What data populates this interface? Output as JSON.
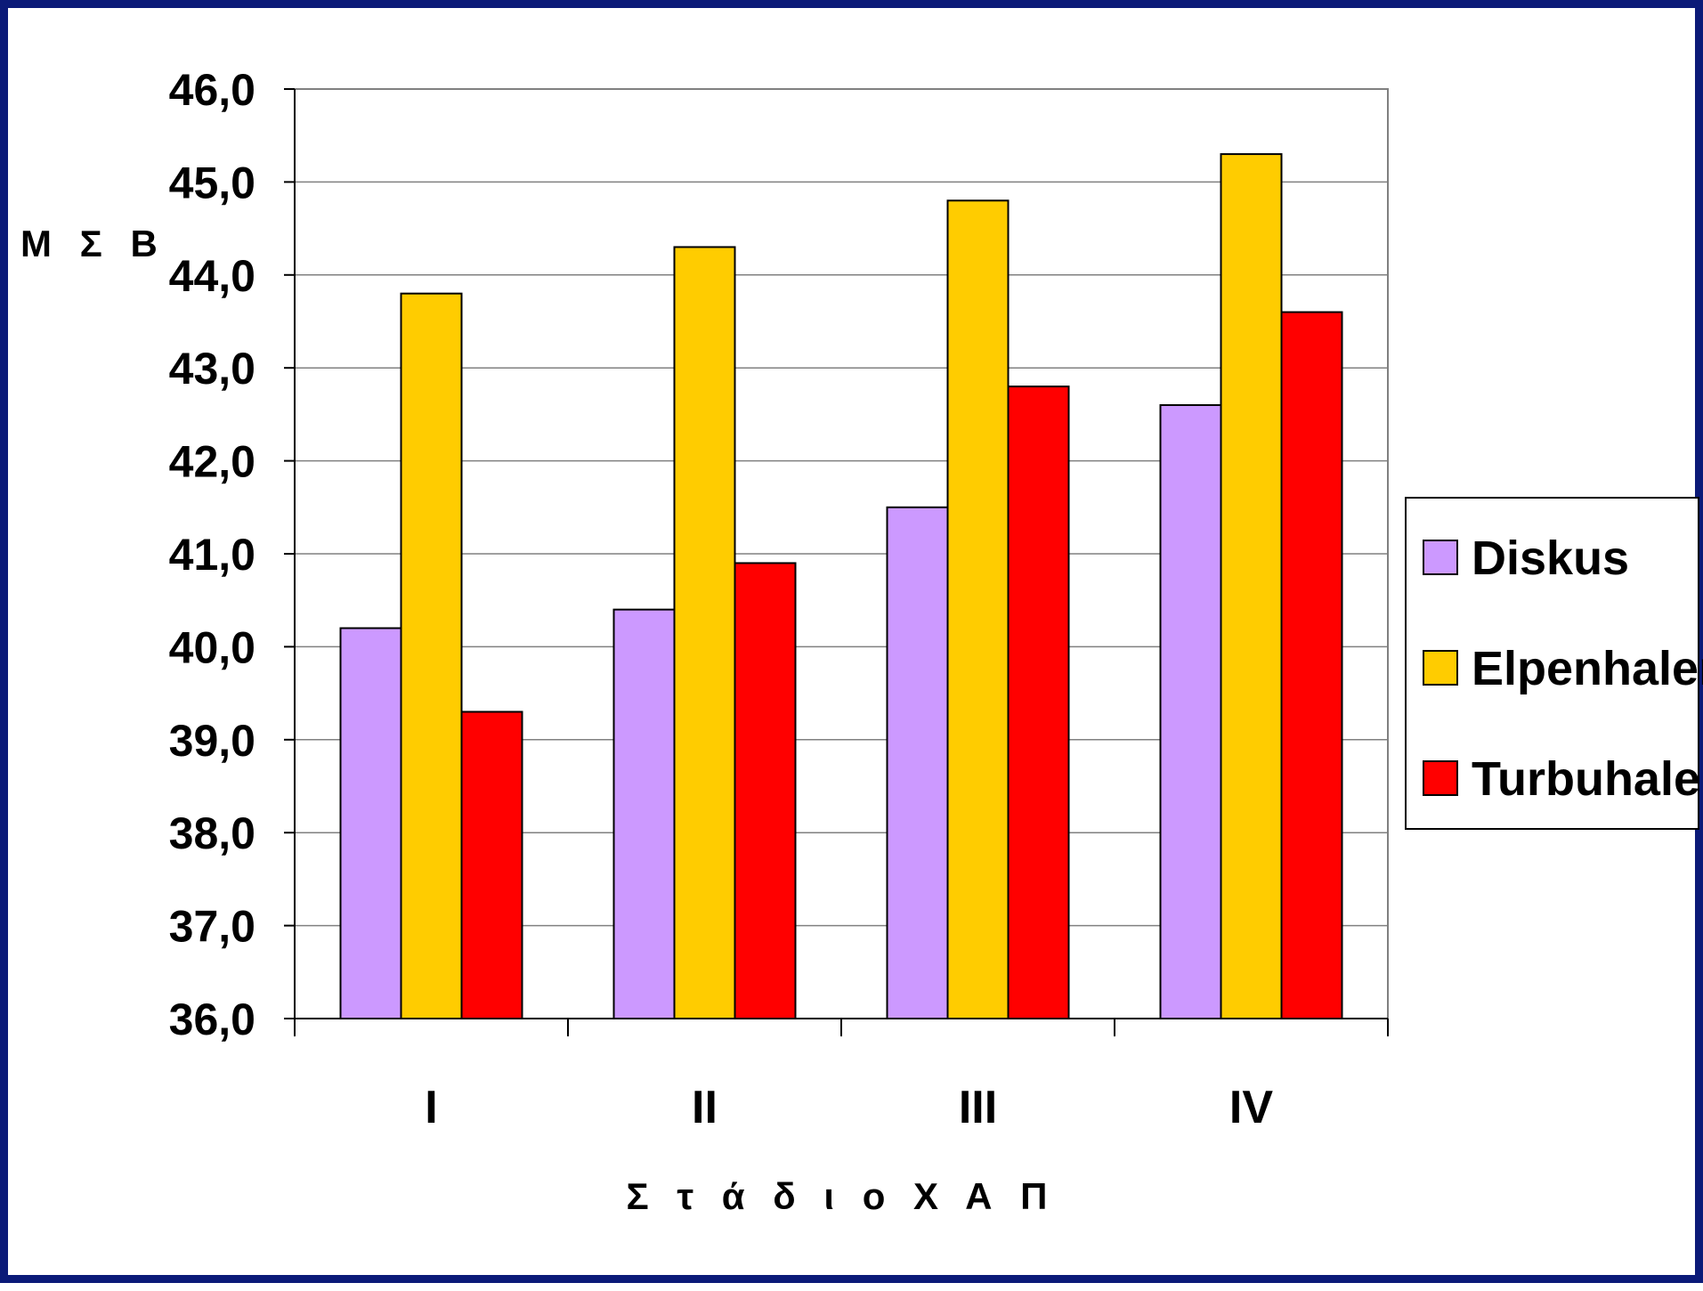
{
  "chart_data": {
    "type": "bar",
    "title": "",
    "xlabel": "Σ τ ά δ ι ο   Χ Α Π",
    "ylabel": "Μ Σ Β",
    "ylim": [
      36,
      46
    ],
    "yticks": [
      "36,0",
      "37,0",
      "38,0",
      "39,0",
      "40,0",
      "41,0",
      "42,0",
      "43,0",
      "44,0",
      "45,0",
      "46,0"
    ],
    "categories": [
      "I",
      "II",
      "III",
      "IV"
    ],
    "series": [
      {
        "name": "Diskus",
        "color": "#cc99ff",
        "values": [
          40.2,
          40.4,
          41.5,
          42.6
        ]
      },
      {
        "name": "Elpenhaler",
        "color": "#ffcc00",
        "values": [
          43.8,
          44.3,
          44.8,
          45.3
        ]
      },
      {
        "name": "Turbuhaler",
        "color": "#ff0000",
        "values": [
          39.3,
          40.9,
          42.8,
          43.6
        ]
      }
    ],
    "grid": true,
    "legend_position": "right"
  }
}
